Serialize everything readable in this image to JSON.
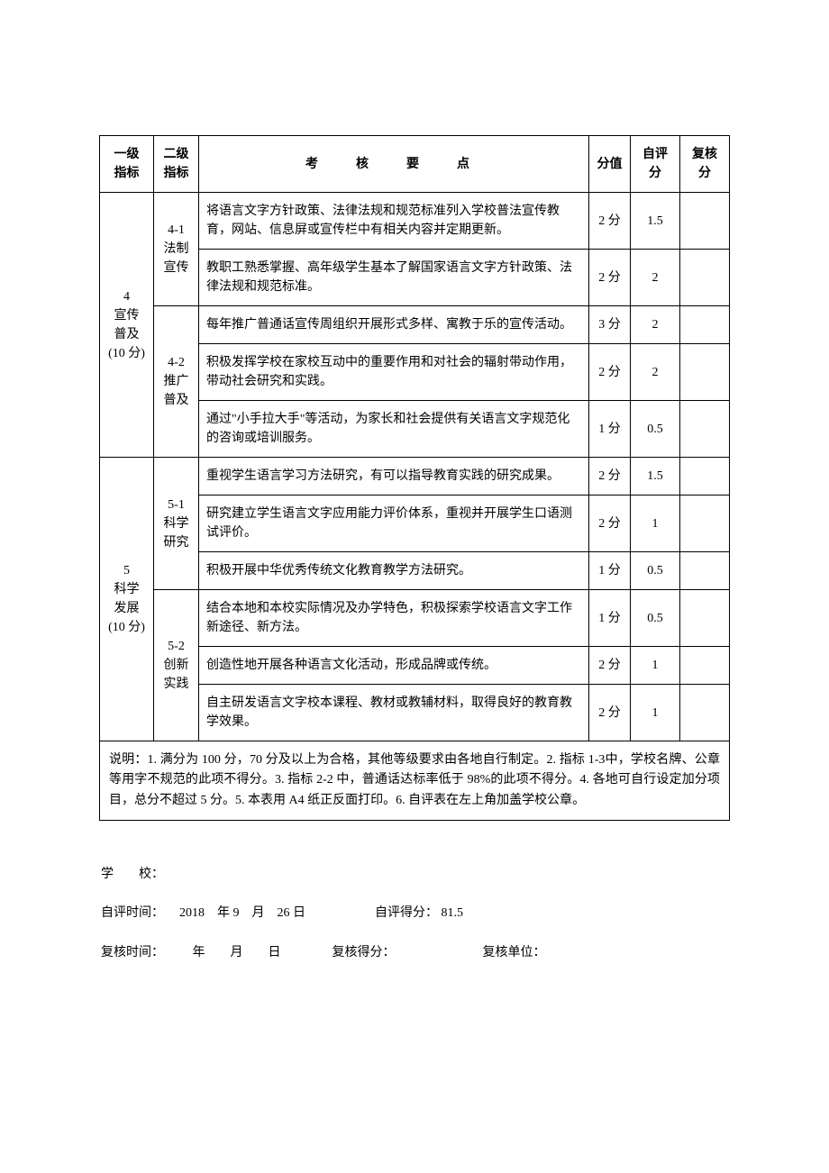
{
  "table": {
    "headers": {
      "level1": "一级\n指标",
      "level2": "二级\n指标",
      "points": "考　核　要　点",
      "score": "分值",
      "self": "自评分",
      "review": "复核分"
    },
    "groups": [
      {
        "level1": "4\n宣传\n普及\n(10 分)",
        "subgroups": [
          {
            "level2": "4-1\n法制\n宣传",
            "items": [
              {
                "points": "将语言文字方针政策、法律法规和规范标准列入学校普法宣传教育，网站、信息屏或宣传栏中有相关内容并定期更新。",
                "score": "2 分",
                "self": "1.5",
                "review": ""
              },
              {
                "points": "教职工熟悉掌握、高年级学生基本了解国家语言文字方针政策、法律法规和规范标准。",
                "score": "2 分",
                "self": "2",
                "review": ""
              }
            ]
          },
          {
            "level2": "4-2\n推广\n普及",
            "items": [
              {
                "points": "每年推广普通话宣传周组织开展形式多样、寓教于乐的宣传活动。",
                "score": "3 分",
                "self": "2",
                "review": ""
              },
              {
                "points": "积极发挥学校在家校互动中的重要作用和对社会的辐射带动作用，带动社会研究和实践。",
                "score": "2 分",
                "self": "2",
                "review": ""
              },
              {
                "points": "通过\"小手拉大手\"等活动，为家长和社会提供有关语言文字规范化的咨询或培训服务。",
                "score": "1 分",
                "self": "0.5",
                "review": ""
              }
            ]
          }
        ]
      },
      {
        "level1": "5\n科学\n发展\n(10 分)",
        "subgroups": [
          {
            "level2": "5-1\n科学\n研究",
            "items": [
              {
                "points": "重视学生语言学习方法研究，有可以指导教育实践的研究成果。",
                "score": "2 分",
                "self": "1.5",
                "review": ""
              },
              {
                "points": "研究建立学生语言文字应用能力评价体系，重视并开展学生口语测试评价。",
                "score": "2 分",
                "self": "1",
                "review": ""
              },
              {
                "points": "积极开展中华优秀传统文化教育教学方法研究。",
                "score": "1 分",
                "self": "0.5",
                "review": ""
              }
            ]
          },
          {
            "level2": "5-2\n创新\n实践",
            "items": [
              {
                "points": "结合本地和本校实际情况及办学特色，积极探索学校语言文字工作新途径、新方法。",
                "score": "1 分",
                "self": "0.5",
                "review": ""
              },
              {
                "points": "创造性地开展各种语言文化活动，形成品牌或传统。",
                "score": "2 分",
                "self": "1",
                "review": ""
              },
              {
                "points": "自主研发语言文字校本课程、教材或教辅材料，取得良好的教育教学效果。",
                "score": "2 分",
                "self": "1",
                "review": ""
              }
            ]
          }
        ]
      }
    ],
    "footer_note": "说明：1. 满分为 100 分，70 分及以上为合格，其他等级要求由各地自行制定。2. 指标 1-3中，学校名牌、公章等用字不规范的此项不得分。3. 指标 2-2 中，普通话达标率低于 98%的此项不得分。4. 各地可自行设定加分项目，总分不超过 5 分。5. 本表用 A4 纸正反面打印。6. 自评表在左上角加盖学校公章。"
  },
  "info": {
    "school_label": "学　　校：",
    "self_time_label": "自评时间：",
    "self_time_value": "2018　年 9　月　26 日",
    "self_score_label": "自评得分：",
    "self_score_value": "81.5",
    "review_time_label": "复核时间：",
    "review_time_value": "　　年　　月　　日",
    "review_score_label": "复核得分：",
    "review_unit_label": "复核单位："
  }
}
